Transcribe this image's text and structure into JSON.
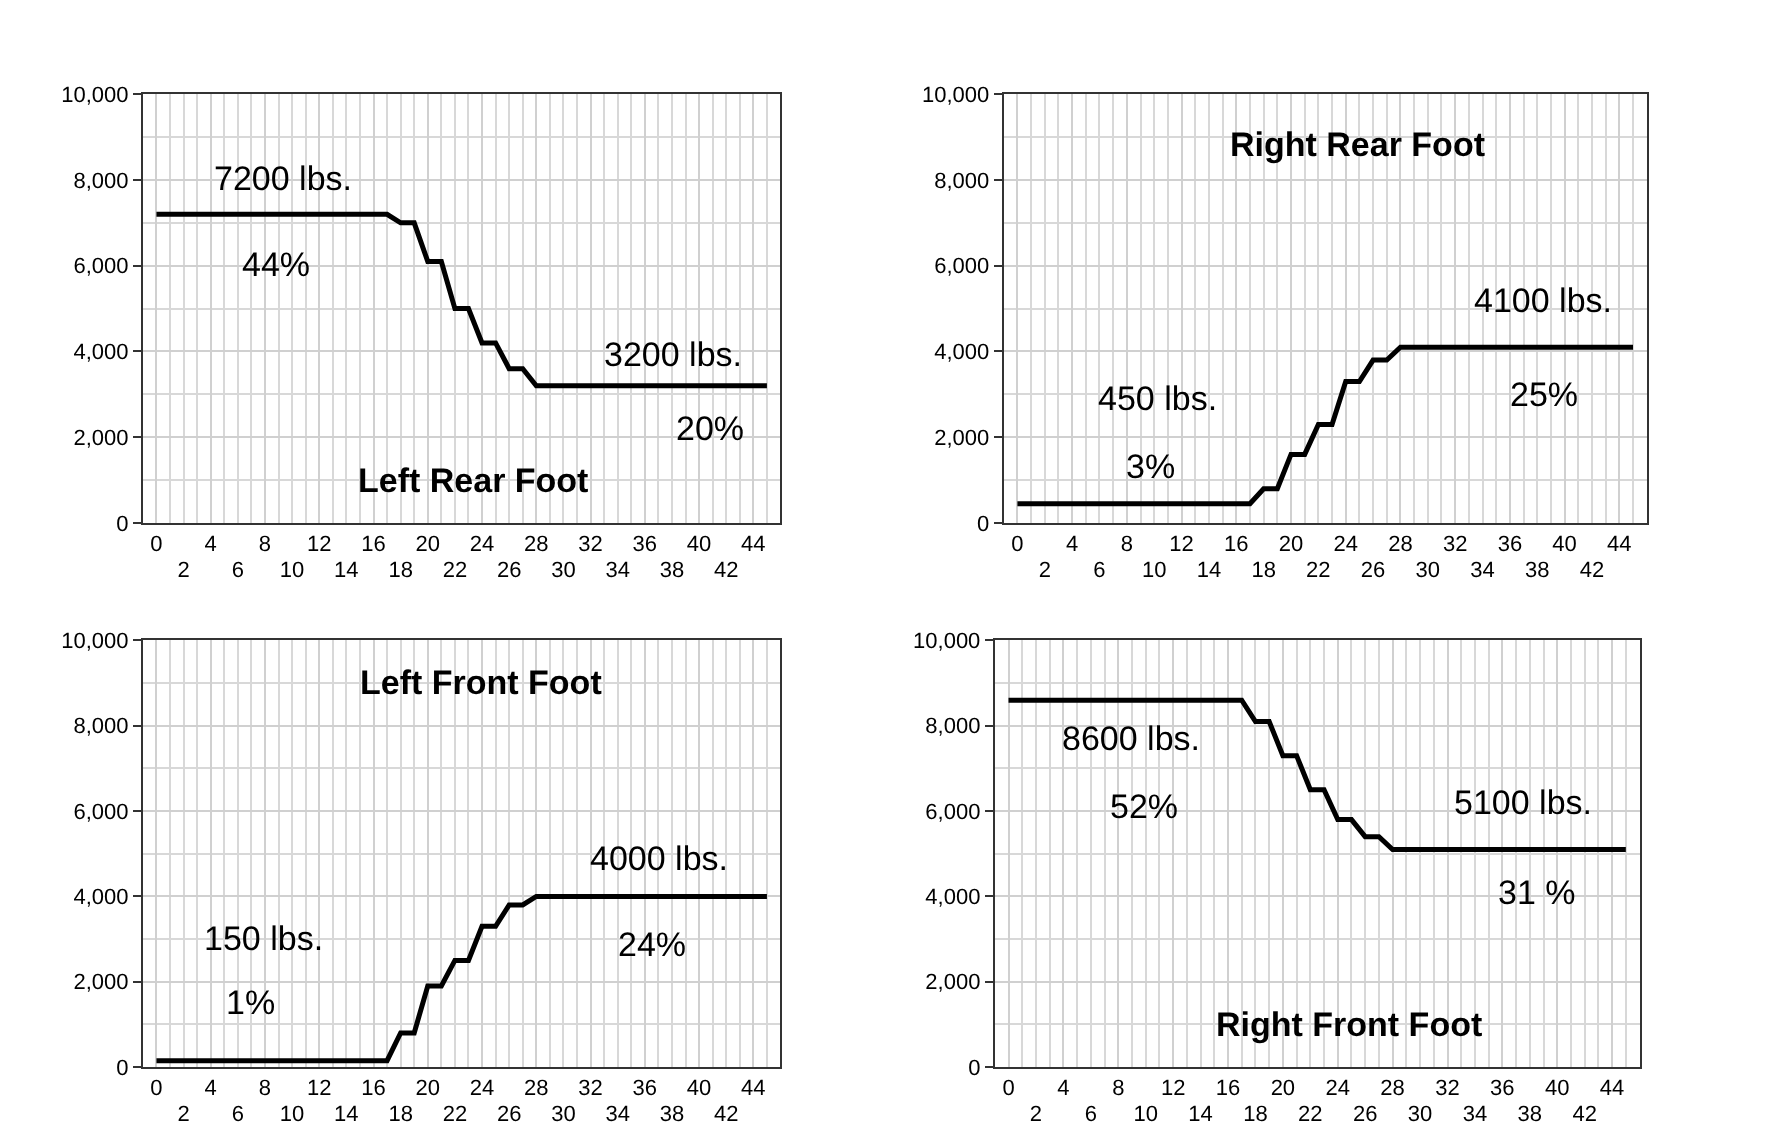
{
  "chart_data": [
    {
      "type": "line",
      "title": "Left Rear Foot",
      "color": "#000000",
      "grid": true,
      "xlim": [
        -1,
        46
      ],
      "ylim": [
        0,
        10000
      ],
      "x2lim": [
        -1,
        46
      ],
      "xticks": [
        0,
        4,
        8,
        12,
        16,
        20,
        24,
        28,
        32,
        36,
        40,
        44
      ],
      "x2ticks": [
        2,
        6,
        10,
        14,
        18,
        22,
        26,
        30,
        34,
        38,
        42
      ],
      "yticks": [
        0,
        {
          "value": 2000,
          "label": "2,000"
        },
        {
          "value": 4000,
          "label": "4,000"
        },
        {
          "value": 6000,
          "label": "6,000"
        },
        {
          "value": 8000,
          "label": "8,000"
        },
        {
          "value": 10000,
          "label": "10,000"
        }
      ],
      "x": [
        0,
        17,
        18,
        19,
        20,
        21,
        22,
        23,
        24,
        25,
        26,
        27,
        28,
        45
      ],
      "values": [
        7200,
        7200,
        7000,
        7000,
        6100,
        6100,
        5000,
        5000,
        4200,
        4200,
        3600,
        3600,
        3200,
        3200
      ],
      "annotations": [
        "7200 lbs.",
        "44%",
        "3200 lbs.",
        "20%"
      ]
    },
    {
      "type": "line",
      "title": "Right Rear Foot",
      "color": "#000000",
      "grid": true,
      "xlim": [
        -1,
        46
      ],
      "ylim": [
        0,
        10000
      ],
      "x2lim": [
        -1,
        46
      ],
      "xticks": [
        0,
        4,
        8,
        12,
        16,
        20,
        24,
        28,
        32,
        36,
        40,
        44
      ],
      "x2ticks": [
        2,
        6,
        10,
        14,
        18,
        22,
        26,
        30,
        34,
        38,
        42
      ],
      "yticks": [
        0,
        {
          "value": 2000,
          "label": "2,000"
        },
        {
          "value": 4000,
          "label": "4,000"
        },
        {
          "value": 6000,
          "label": "6,000"
        },
        {
          "value": 8000,
          "label": "8,000"
        },
        {
          "value": 10000,
          "label": "10,000"
        }
      ],
      "x": [
        0,
        17,
        18,
        19,
        20,
        21,
        22,
        23,
        24,
        25,
        26,
        27,
        28,
        45
      ],
      "values": [
        450,
        450,
        800,
        800,
        1600,
        1600,
        2300,
        2300,
        3300,
        3300,
        3800,
        3800,
        4100,
        4100
      ],
      "annotations": [
        "450 lbs.",
        "3%",
        "4100 lbs.",
        "25%"
      ]
    },
    {
      "type": "line",
      "title": "Left Front Foot",
      "color": "#000000",
      "grid": true,
      "xlim": [
        -1,
        46
      ],
      "ylim": [
        0,
        10000
      ],
      "x2lim": [
        -1,
        46
      ],
      "xticks": [
        0,
        4,
        8,
        12,
        16,
        20,
        24,
        28,
        32,
        36,
        40,
        44
      ],
      "x2ticks": [
        2,
        6,
        10,
        14,
        18,
        22,
        26,
        30,
        34,
        38,
        42
      ],
      "yticks": [
        0,
        {
          "value": 2000,
          "label": "2,000"
        },
        {
          "value": 4000,
          "label": "4,000"
        },
        {
          "value": 6000,
          "label": "6,000"
        },
        {
          "value": 8000,
          "label": "8,000"
        },
        {
          "value": 10000,
          "label": "10,000"
        }
      ],
      "x": [
        0,
        17,
        18,
        19,
        20,
        21,
        22,
        23,
        24,
        25,
        26,
        27,
        28,
        45
      ],
      "values": [
        150,
        150,
        800,
        800,
        1900,
        1900,
        2500,
        2500,
        3300,
        3300,
        3800,
        3800,
        4000,
        4000
      ],
      "annotations": [
        "150 lbs.",
        "1%",
        "4000 lbs.",
        "24%"
      ]
    },
    {
      "type": "line",
      "title": "Right Front Foot",
      "color": "#000000",
      "grid": true,
      "xlim": [
        -1,
        46
      ],
      "ylim": [
        0,
        10000
      ],
      "x2lim": [
        -1,
        46
      ],
      "xticks": [
        0,
        4,
        8,
        12,
        16,
        20,
        24,
        28,
        32,
        36,
        40,
        44
      ],
      "x2ticks": [
        2,
        6,
        10,
        14,
        18,
        22,
        26,
        30,
        34,
        38,
        42
      ],
      "yticks": [
        0,
        {
          "value": 2000,
          "label": "2,000"
        },
        {
          "value": 4000,
          "label": "4,000"
        },
        {
          "value": 6000,
          "label": "6,000"
        },
        {
          "value": 8000,
          "label": "8,000"
        },
        {
          "value": 10000,
          "label": "10,000"
        }
      ],
      "x": [
        0,
        17,
        18,
        19,
        20,
        21,
        22,
        23,
        24,
        25,
        26,
        27,
        28,
        45
      ],
      "values": [
        8600,
        8600,
        8100,
        8100,
        7300,
        7300,
        6500,
        6500,
        5800,
        5800,
        5400,
        5400,
        5100,
        5100
      ],
      "annotations": [
        "8600 lbs.",
        "52%",
        "5100 lbs.",
        "31 %"
      ]
    }
  ]
}
